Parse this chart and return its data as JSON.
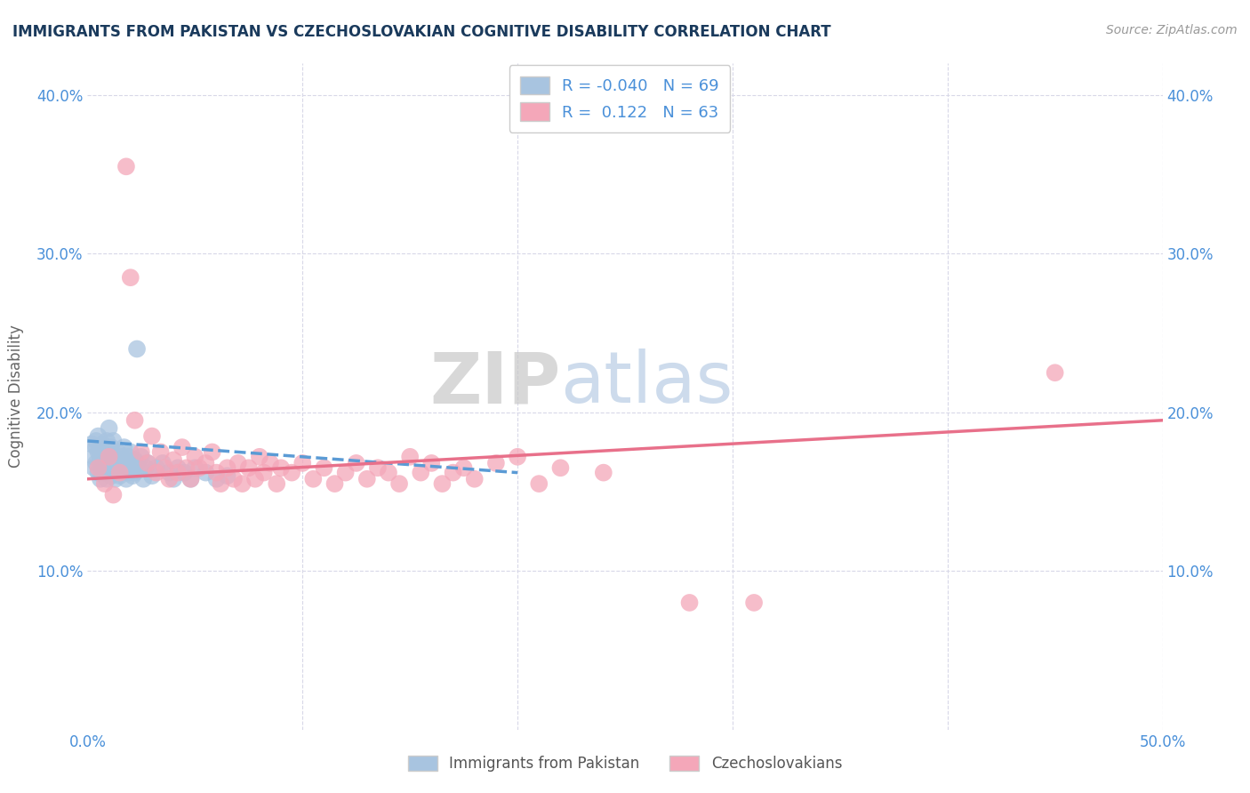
{
  "title": "IMMIGRANTS FROM PAKISTAN VS CZECHOSLOVAKIAN COGNITIVE DISABILITY CORRELATION CHART",
  "source": "Source: ZipAtlas.com",
  "xlabel": "",
  "ylabel": "Cognitive Disability",
  "xlim": [
    0.0,
    0.5
  ],
  "ylim": [
    0.0,
    0.42
  ],
  "x_ticks": [
    0.0,
    0.1,
    0.2,
    0.3,
    0.4,
    0.5
  ],
  "x_tick_labels": [
    "0.0%",
    "",
    "",
    "",
    "",
    "50.0%"
  ],
  "y_ticks": [
    0.0,
    0.1,
    0.2,
    0.3,
    0.4
  ],
  "y_tick_labels": [
    "",
    "10.0%",
    "20.0%",
    "30.0%",
    "40.0%"
  ],
  "r_pakistan": -0.04,
  "n_pakistan": 69,
  "r_czech": 0.122,
  "n_czech": 63,
  "legend_labels": [
    "Immigrants from Pakistan",
    "Czechoslovakians"
  ],
  "pakistan_color": "#a8c4e0",
  "czech_color": "#f4a7b9",
  "pakistan_line_color": "#5b9bd5",
  "czech_line_color": "#e8708a",
  "watermark_zip": "ZIP",
  "watermark_atlas": "atlas",
  "background_color": "#ffffff",
  "grid_color": "#d8d8e8",
  "title_color": "#1a3a5c",
  "axis_label_color": "#4a90d9",
  "scatter_pakistan": [
    [
      0.002,
      0.18
    ],
    [
      0.003,
      0.172
    ],
    [
      0.003,
      0.165
    ],
    [
      0.004,
      0.178
    ],
    [
      0.004,
      0.168
    ],
    [
      0.004,
      0.182
    ],
    [
      0.005,
      0.175
    ],
    [
      0.005,
      0.162
    ],
    [
      0.005,
      0.185
    ],
    [
      0.006,
      0.17
    ],
    [
      0.006,
      0.158
    ],
    [
      0.006,
      0.175
    ],
    [
      0.007,
      0.172
    ],
    [
      0.007,
      0.165
    ],
    [
      0.007,
      0.18
    ],
    [
      0.008,
      0.168
    ],
    [
      0.008,
      0.175
    ],
    [
      0.008,
      0.162
    ],
    [
      0.009,
      0.17
    ],
    [
      0.009,
      0.182
    ],
    [
      0.009,
      0.158
    ],
    [
      0.01,
      0.175
    ],
    [
      0.01,
      0.165
    ],
    [
      0.01,
      0.19
    ],
    [
      0.011,
      0.168
    ],
    [
      0.011,
      0.178
    ],
    [
      0.011,
      0.16
    ],
    [
      0.012,
      0.172
    ],
    [
      0.012,
      0.182
    ],
    [
      0.012,
      0.165
    ],
    [
      0.013,
      0.168
    ],
    [
      0.013,
      0.158
    ],
    [
      0.014,
      0.175
    ],
    [
      0.014,
      0.165
    ],
    [
      0.015,
      0.17
    ],
    [
      0.015,
      0.16
    ],
    [
      0.016,
      0.172
    ],
    [
      0.016,
      0.165
    ],
    [
      0.017,
      0.168
    ],
    [
      0.017,
      0.178
    ],
    [
      0.018,
      0.165
    ],
    [
      0.018,
      0.158
    ],
    [
      0.019,
      0.172
    ],
    [
      0.019,
      0.162
    ],
    [
      0.02,
      0.168
    ],
    [
      0.02,
      0.175
    ],
    [
      0.021,
      0.165
    ],
    [
      0.021,
      0.16
    ],
    [
      0.022,
      0.17
    ],
    [
      0.022,
      0.162
    ],
    [
      0.023,
      0.168
    ],
    [
      0.023,
      0.24
    ],
    [
      0.024,
      0.165
    ],
    [
      0.025,
      0.172
    ],
    [
      0.026,
      0.158
    ],
    [
      0.027,
      0.165
    ],
    [
      0.028,
      0.168
    ],
    [
      0.03,
      0.16
    ],
    [
      0.032,
      0.165
    ],
    [
      0.035,
      0.168
    ],
    [
      0.038,
      0.162
    ],
    [
      0.04,
      0.158
    ],
    [
      0.042,
      0.165
    ],
    [
      0.045,
      0.162
    ],
    [
      0.048,
      0.158
    ],
    [
      0.05,
      0.165
    ],
    [
      0.055,
      0.162
    ],
    [
      0.06,
      0.158
    ],
    [
      0.065,
      0.16
    ]
  ],
  "scatter_czech": [
    [
      0.005,
      0.165
    ],
    [
      0.008,
      0.155
    ],
    [
      0.01,
      0.172
    ],
    [
      0.012,
      0.148
    ],
    [
      0.015,
      0.162
    ],
    [
      0.018,
      0.355
    ],
    [
      0.02,
      0.285
    ],
    [
      0.022,
      0.195
    ],
    [
      0.025,
      0.175
    ],
    [
      0.028,
      0.168
    ],
    [
      0.03,
      0.185
    ],
    [
      0.032,
      0.162
    ],
    [
      0.034,
      0.175
    ],
    [
      0.036,
      0.165
    ],
    [
      0.038,
      0.158
    ],
    [
      0.04,
      0.17
    ],
    [
      0.042,
      0.162
    ],
    [
      0.044,
      0.178
    ],
    [
      0.046,
      0.165
    ],
    [
      0.048,
      0.158
    ],
    [
      0.05,
      0.172
    ],
    [
      0.052,
      0.165
    ],
    [
      0.055,
      0.168
    ],
    [
      0.058,
      0.175
    ],
    [
      0.06,
      0.162
    ],
    [
      0.062,
      0.155
    ],
    [
      0.065,
      0.165
    ],
    [
      0.068,
      0.158
    ],
    [
      0.07,
      0.168
    ],
    [
      0.072,
      0.155
    ],
    [
      0.075,
      0.165
    ],
    [
      0.078,
      0.158
    ],
    [
      0.08,
      0.172
    ],
    [
      0.082,
      0.162
    ],
    [
      0.085,
      0.168
    ],
    [
      0.088,
      0.155
    ],
    [
      0.09,
      0.165
    ],
    [
      0.095,
      0.162
    ],
    [
      0.1,
      0.168
    ],
    [
      0.105,
      0.158
    ],
    [
      0.11,
      0.165
    ],
    [
      0.115,
      0.155
    ],
    [
      0.12,
      0.162
    ],
    [
      0.125,
      0.168
    ],
    [
      0.13,
      0.158
    ],
    [
      0.135,
      0.165
    ],
    [
      0.14,
      0.162
    ],
    [
      0.145,
      0.155
    ],
    [
      0.15,
      0.172
    ],
    [
      0.155,
      0.162
    ],
    [
      0.16,
      0.168
    ],
    [
      0.165,
      0.155
    ],
    [
      0.17,
      0.162
    ],
    [
      0.175,
      0.165
    ],
    [
      0.18,
      0.158
    ],
    [
      0.19,
      0.168
    ],
    [
      0.2,
      0.172
    ],
    [
      0.21,
      0.155
    ],
    [
      0.22,
      0.165
    ],
    [
      0.24,
      0.162
    ],
    [
      0.28,
      0.08
    ],
    [
      0.31,
      0.08
    ],
    [
      0.45,
      0.225
    ]
  ],
  "pak_trend_x": [
    0.0,
    0.2
  ],
  "pak_trend_y": [
    0.182,
    0.162
  ],
  "cz_trend_x": [
    0.0,
    0.5
  ],
  "cz_trend_y": [
    0.158,
    0.195
  ]
}
